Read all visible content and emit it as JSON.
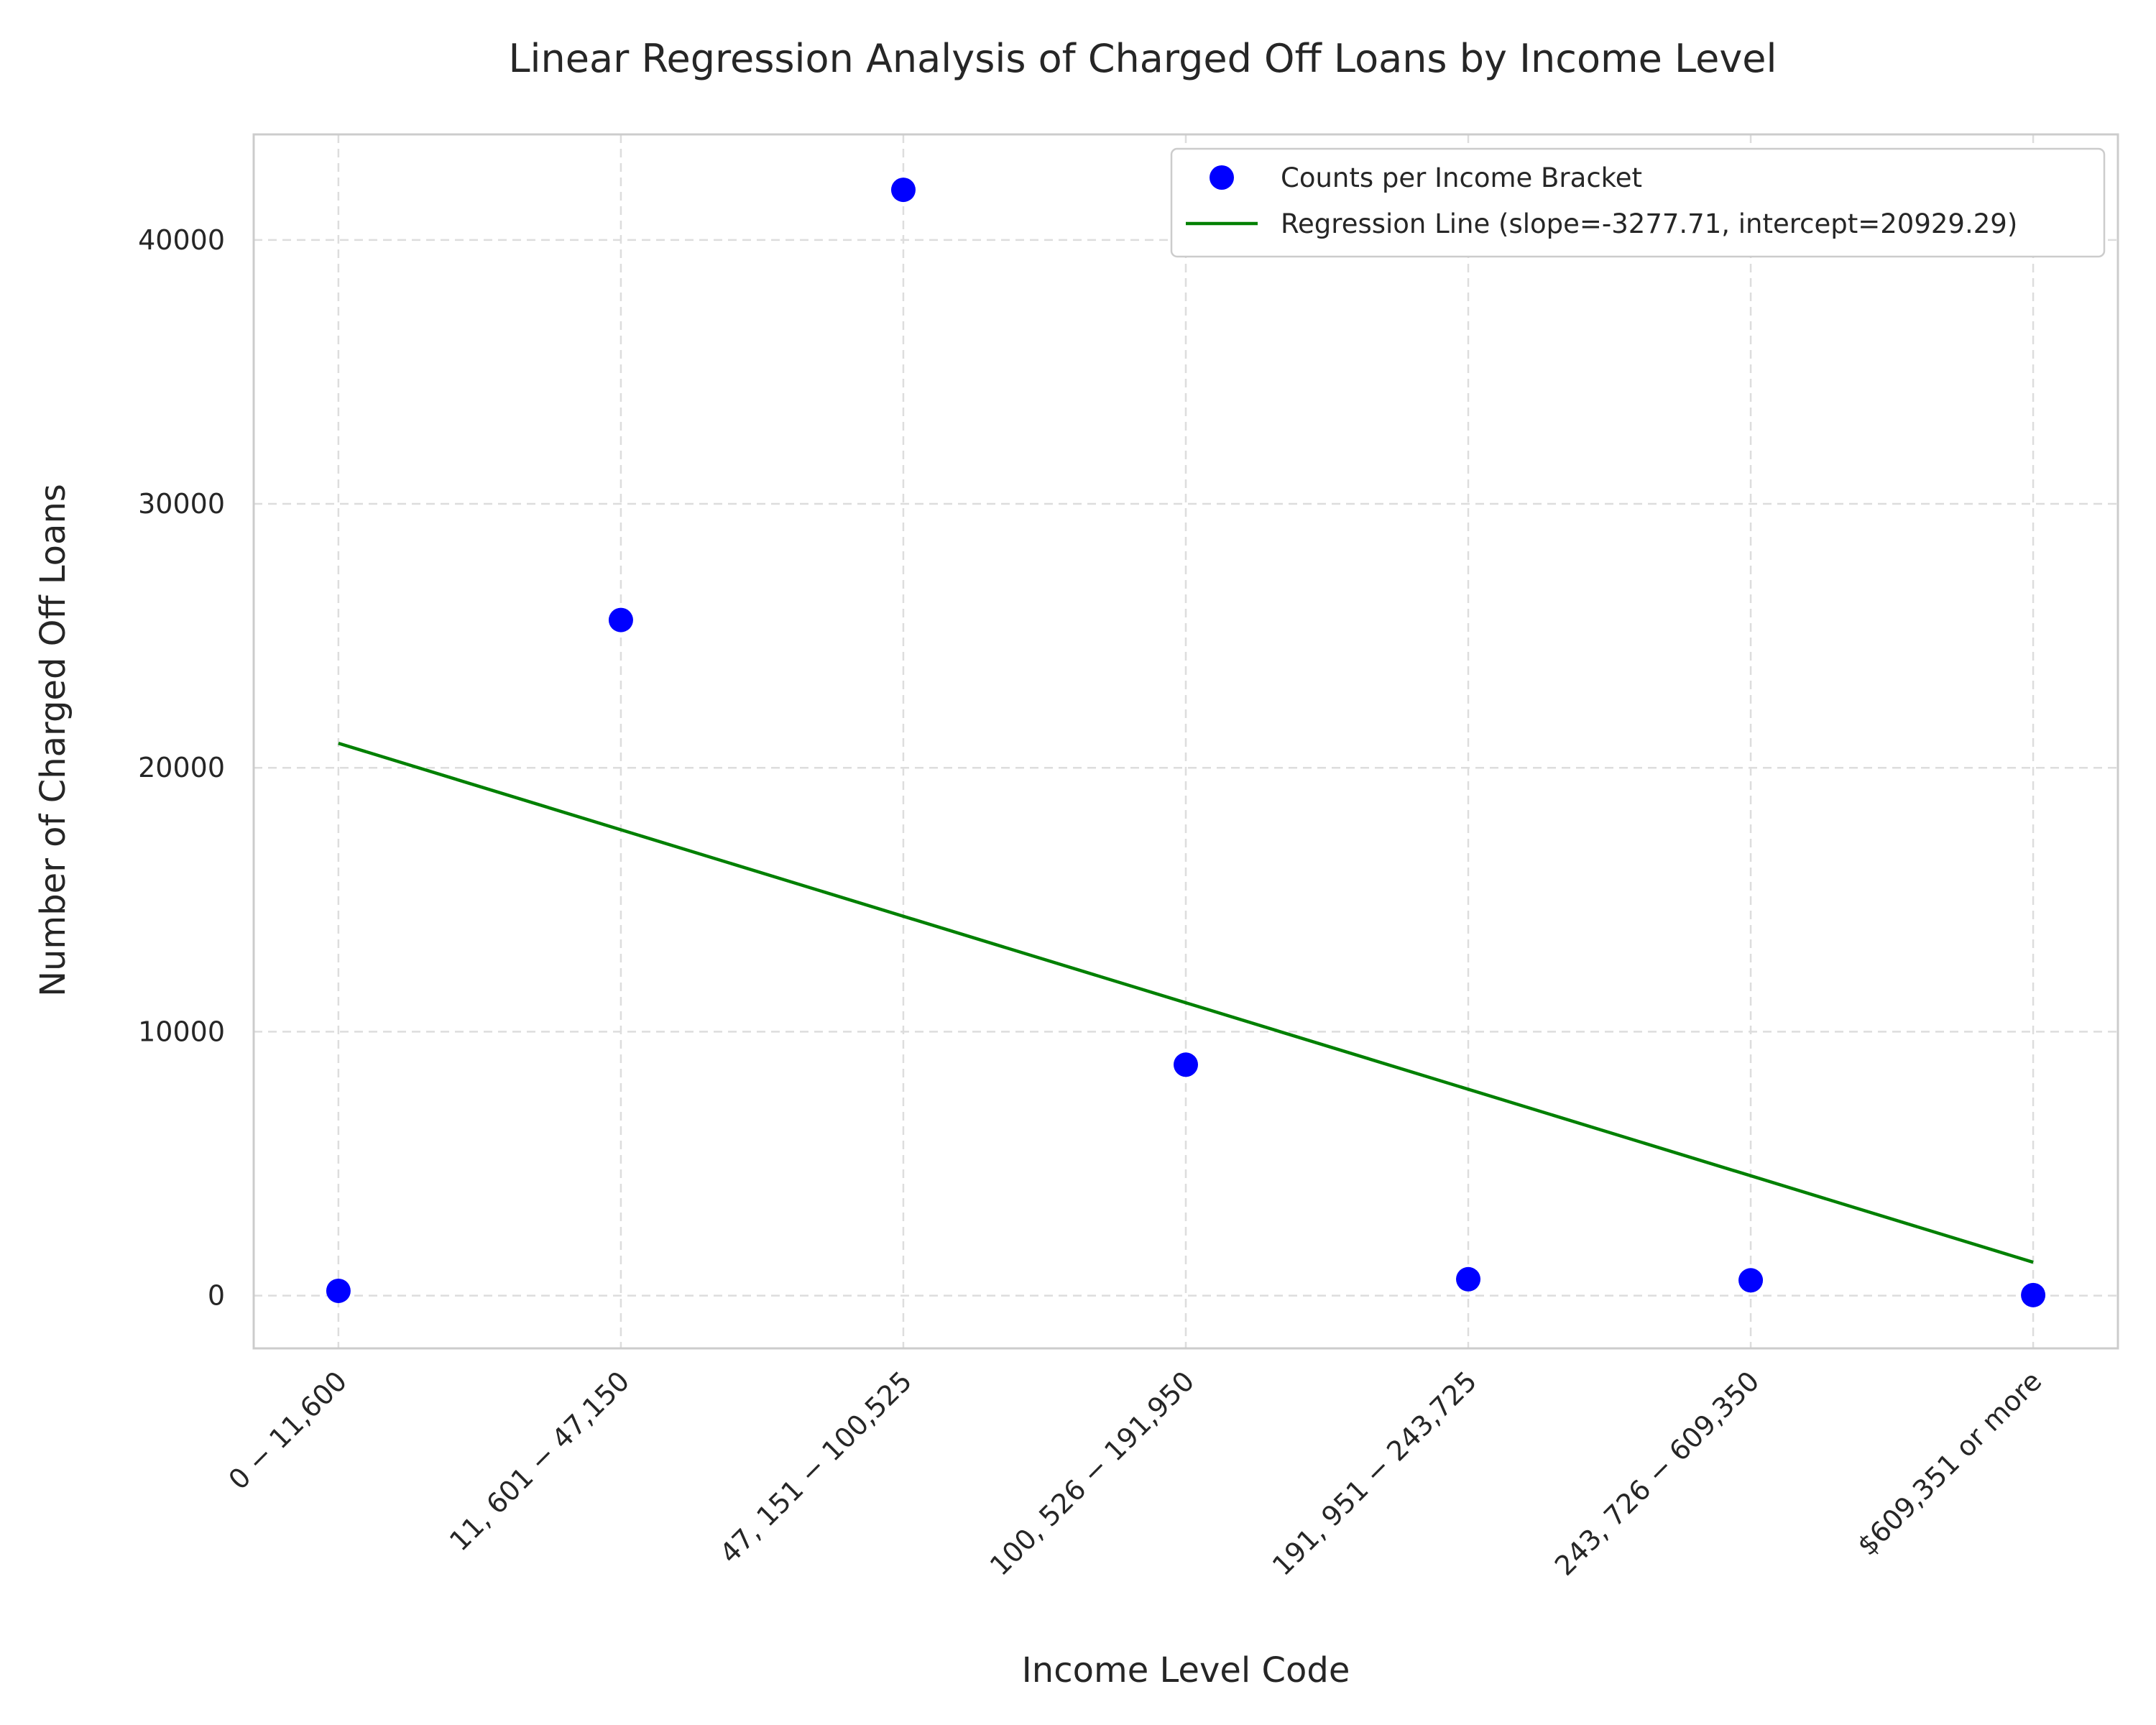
{
  "chart_data": {
    "type": "scatter",
    "title": "Linear Regression Analysis of Charged Off Loans by Income Level",
    "xlabel": "Income Level Code",
    "ylabel": "Number of Charged Off Loans",
    "categories": [
      "0 − 11,600",
      "11, 601 − 47,150",
      "47, 151 − 100,525",
      "100, 526 − 191,950",
      "191, 951 − 243,725",
      "243, 726 − 609,350",
      "$609,351 or more"
    ],
    "x": [
      0,
      1,
      2,
      3,
      4,
      5,
      6
    ],
    "xlim": [
      -0.3,
      6.3
    ],
    "ylim": [
      -2000,
      44000
    ],
    "yticks": [
      0,
      10000,
      20000,
      30000,
      40000
    ],
    "grid": true,
    "legend_position": "top-right",
    "series": [
      {
        "name": "Counts per Income Bracket",
        "kind": "scatter",
        "color": "#0000ff",
        "values": [
          180,
          25600,
          41900,
          8750,
          620,
          580,
          20
        ]
      },
      {
        "name": "Regression Line (slope=-3277.71, intercept=20929.29)",
        "kind": "line",
        "color": "#008000",
        "slope": -3277.71,
        "intercept": 20929.29,
        "values": [
          20929.29,
          17651.58,
          14373.87,
          11096.16,
          7818.45,
          4540.74,
          1263.03
        ]
      }
    ]
  }
}
